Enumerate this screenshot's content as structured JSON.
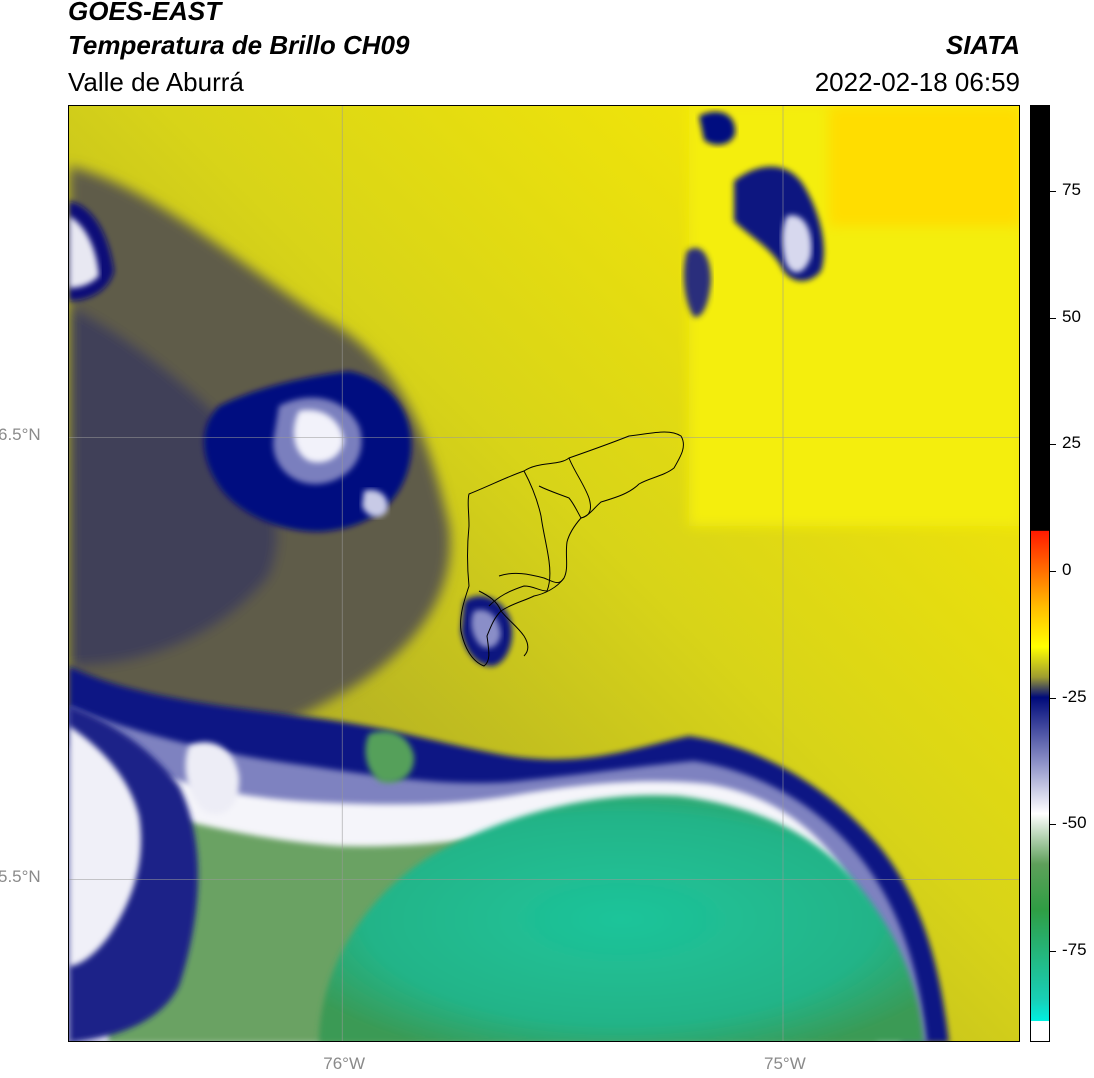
{
  "header": {
    "satellite": "GOES-EAST",
    "product": "Temperatura de Brillo CH09",
    "region": "Valle de Aburrá",
    "agency": "SIATA",
    "datetime": "2022-02-18 06:59"
  },
  "map": {
    "lat_labels": [
      {
        "text": "6.5°N",
        "value": 6.5
      },
      {
        "text": "5.5°N",
        "value": 5.5
      }
    ],
    "lon_labels": [
      {
        "text": "76°W",
        "value": -76
      },
      {
        "text": "75°W",
        "value": -75
      }
    ],
    "lat_range": [
      5.13,
      7.25
    ],
    "lon_range": [
      -76.62,
      -74.46
    ]
  },
  "colorbar": {
    "range": [
      -93,
      92
    ],
    "ticks": [
      {
        "text": "75",
        "value": 75
      },
      {
        "text": "50",
        "value": 50
      },
      {
        "text": "25",
        "value": 25
      },
      {
        "text": "0",
        "value": 0
      },
      {
        "text": "-25",
        "value": -25
      },
      {
        "text": "-50",
        "value": -50
      },
      {
        "text": "-75",
        "value": -75
      }
    ],
    "stops": [
      {
        "value": 92,
        "color": "#000000"
      },
      {
        "value": 8,
        "color": "#000000"
      },
      {
        "value": 7.9,
        "color": "#ff1a00"
      },
      {
        "value": -7,
        "color": "#ffbb00"
      },
      {
        "value": -15,
        "color": "#ffff00"
      },
      {
        "value": -21,
        "color": "#9e9c30"
      },
      {
        "value": -25,
        "color": "#000a7a"
      },
      {
        "value": -38,
        "color": "#8e92c8"
      },
      {
        "value": -48,
        "color": "#ffffff"
      },
      {
        "value": -58,
        "color": "#5ea05a"
      },
      {
        "value": -67,
        "color": "#2f9e44"
      },
      {
        "value": -85,
        "color": "#18d0b8"
      },
      {
        "value": -89,
        "color": "#00f0e0"
      },
      {
        "value": -89.1,
        "color": "#ffffff"
      },
      {
        "value": -93,
        "color": "#ffffff"
      }
    ]
  }
}
